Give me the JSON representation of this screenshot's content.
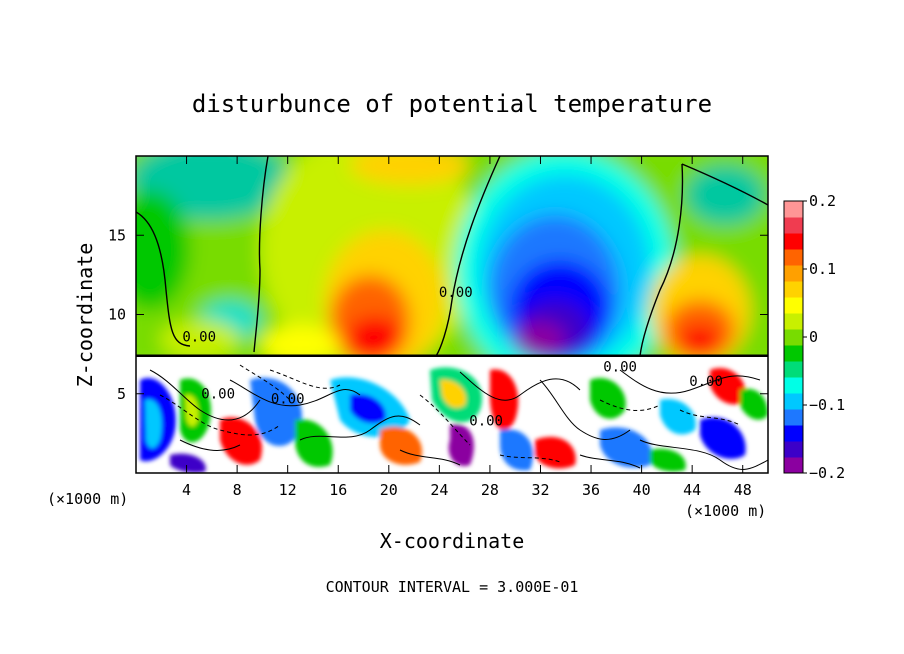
{
  "chart_data": {
    "type": "heatmap",
    "title": "disturbunce of potential temperature",
    "xlabel": "X-coordinate",
    "ylabel": "Z-coordinate",
    "x_unit_left": "(×1000 m)",
    "x_unit_right": "(×1000 m)",
    "xlim": [
      0,
      50
    ],
    "ylim": [
      0,
      20
    ],
    "xticks": [
      4,
      8,
      12,
      16,
      20,
      24,
      28,
      32,
      36,
      40,
      44,
      48
    ],
    "yticks": [
      5,
      10,
      15
    ],
    "colorbar": {
      "min": -0.2,
      "max": 0.2,
      "ticks": [
        {
          "value": 0.2,
          "label": "0.2"
        },
        {
          "value": 0.1,
          "label": "0.1"
        },
        {
          "value": 0,
          "label": "0"
        },
        {
          "value": -0.1,
          "label": "−0.1"
        },
        {
          "value": -0.2,
          "label": "−0.2"
        }
      ],
      "colors": [
        "#8b00a0",
        "#3c00c8",
        "#0000ff",
        "#1e78ff",
        "#00c8ff",
        "#00ffe6",
        "#00dc78",
        "#00c800",
        "#78dc00",
        "#c8f000",
        "#ffff00",
        "#ffd200",
        "#ffa000",
        "#ff6400",
        "#ff0000",
        "#f03c50",
        "#ff9696"
      ]
    },
    "contour_labels": [
      {
        "text": "0.00",
        "x": 5,
        "z": 8.3
      },
      {
        "text": "0.00",
        "x": 25.3,
        "z": 11.1
      },
      {
        "text": "0.00",
        "x": 6.5,
        "z": 4.7
      },
      {
        "text": "0.00",
        "x": 12,
        "z": 4.4
      },
      {
        "text": "0.00",
        "x": 27.7,
        "z": 3.0
      },
      {
        "text": "0.00",
        "x": 38.3,
        "z": 6.4
      },
      {
        "text": "0.00",
        "x": 45.1,
        "z": 5.5
      }
    ],
    "footer": "CONTOUR INTERVAL = 3.000E-01"
  }
}
